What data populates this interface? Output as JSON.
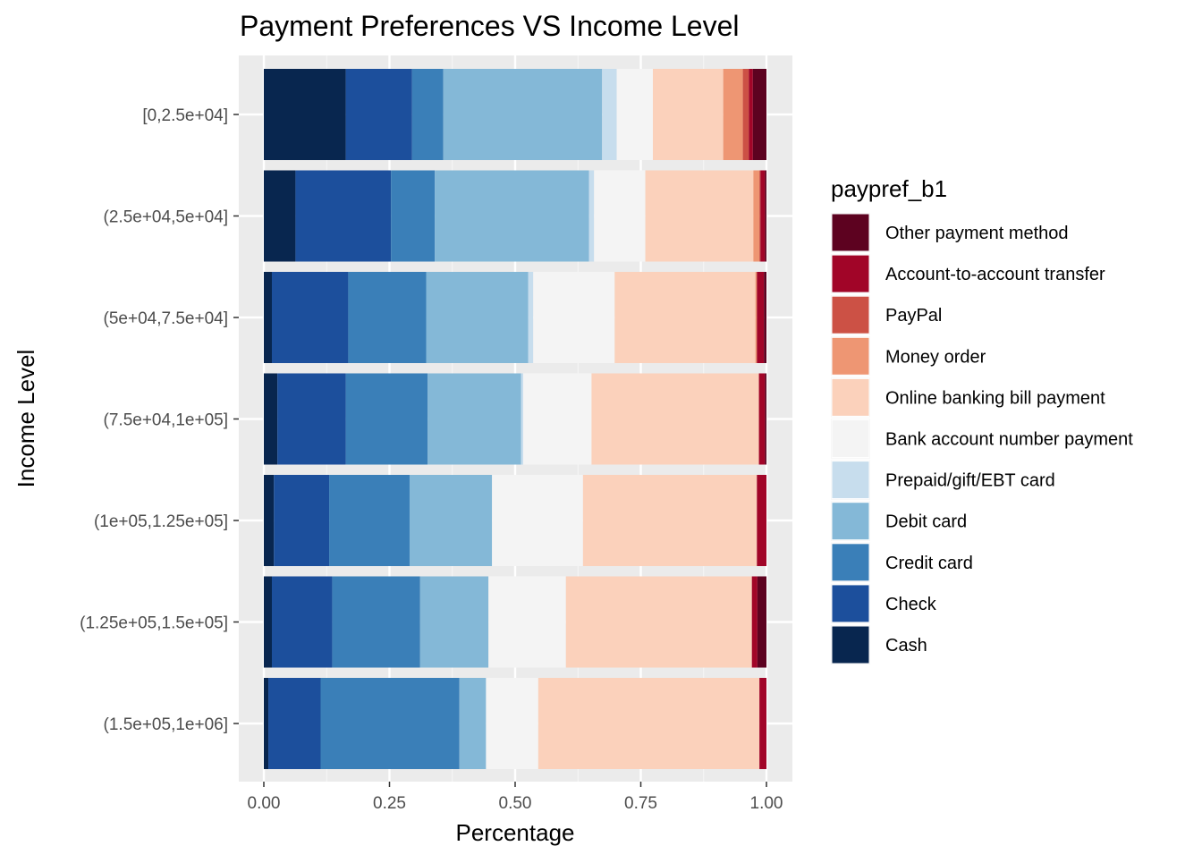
{
  "chart_data": {
    "type": "bar",
    "orientation": "horizontal",
    "stacked": true,
    "title": "Payment Preferences VS Income Level",
    "xlabel": "Percentage",
    "ylabel": "Income Level",
    "xlim": [
      0,
      1
    ],
    "x_ticks": [
      "0.00",
      "0.25",
      "0.50",
      "0.75",
      "1.00"
    ],
    "x_tick_values": [
      0,
      0.25,
      0.5,
      0.75,
      1.0
    ],
    "grid": true,
    "legend_title": "paypref_b1",
    "legend_position": "right",
    "categories": [
      "[0,2.5e+04]",
      "(2.5e+04,5e+04]",
      "(5e+04,7.5e+04]",
      "(7.5e+04,1e+05]",
      "(1e+05,1.25e+05]",
      "(1.25e+05,1.5e+05]",
      "(1.5e+05,1e+06]"
    ],
    "series": [
      {
        "name": "Cash",
        "color": "#08264f",
        "values": [
          0.163,
          0.063,
          0.016,
          0.027,
          0.02,
          0.016,
          0.009
        ]
      },
      {
        "name": "Check",
        "color": "#1c4f9c",
        "values": [
          0.132,
          0.19,
          0.152,
          0.136,
          0.11,
          0.12,
          0.104
        ]
      },
      {
        "name": "Credit card",
        "color": "#3a7fb8",
        "values": [
          0.062,
          0.087,
          0.155,
          0.163,
          0.16,
          0.175,
          0.276
        ]
      },
      {
        "name": "Debit card",
        "color": "#84b8d7",
        "values": [
          0.316,
          0.307,
          0.203,
          0.186,
          0.164,
          0.136,
          0.053
        ]
      },
      {
        "name": "Prepaid/gift/EBT card",
        "color": "#c7dded",
        "values": [
          0.029,
          0.01,
          0.01,
          0.004,
          0.0,
          0.0,
          0.0
        ]
      },
      {
        "name": "Bank account number payment",
        "color": "#f4f4f4",
        "values": [
          0.072,
          0.102,
          0.162,
          0.136,
          0.181,
          0.154,
          0.104
        ]
      },
      {
        "name": "Online banking bill payment",
        "color": "#fbd1bb",
        "values": [
          0.14,
          0.215,
          0.28,
          0.333,
          0.346,
          0.37,
          0.44
        ]
      },
      {
        "name": "Money order",
        "color": "#ee9673",
        "values": [
          0.039,
          0.012,
          0.003,
          0.0,
          0.0,
          0.0,
          0.0
        ]
      },
      {
        "name": "PayPal",
        "color": "#cc5145",
        "values": [
          0.012,
          0.002,
          0.0,
          0.0,
          0.0,
          0.0,
          0.0
        ]
      },
      {
        "name": "Account-to-account transfer",
        "color": "#a10528",
        "values": [
          0.008,
          0.009,
          0.014,
          0.012,
          0.019,
          0.011,
          0.014
        ]
      },
      {
        "name": "Other payment method",
        "color": "#5d0220",
        "values": [
          0.027,
          0.003,
          0.005,
          0.003,
          0.0,
          0.018,
          0.0
        ]
      }
    ],
    "legend_order": [
      "Other payment method",
      "Account-to-account transfer",
      "PayPal",
      "Money order",
      "Online banking bill payment",
      "Bank account number payment",
      "Prepaid/gift/EBT card",
      "Debit card",
      "Credit card",
      "Check",
      "Cash"
    ]
  }
}
